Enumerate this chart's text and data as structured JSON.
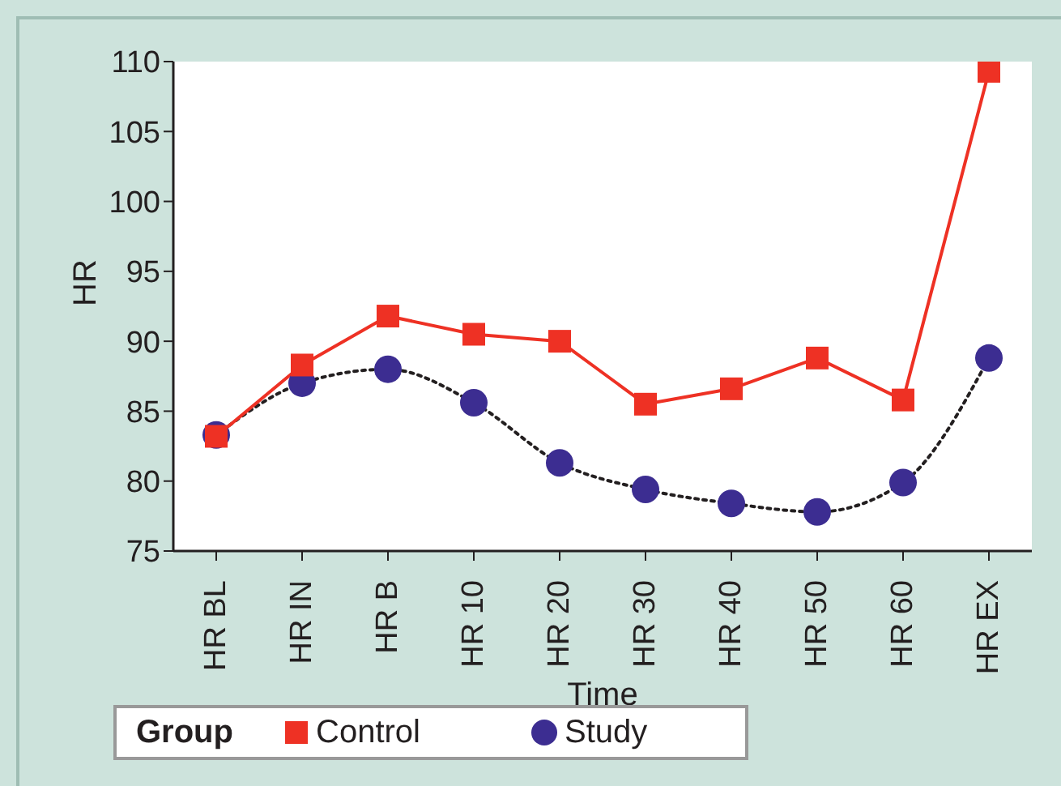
{
  "chart_data": {
    "type": "line",
    "xlabel": "Time",
    "ylabel": "HR",
    "legend_title": "Group",
    "categories": [
      "HR BL",
      "HR IN",
      "HR B",
      "HR 10",
      "HR 20",
      "HR 30",
      "HR 40",
      "HR 50",
      "HR 60",
      "HR EX"
    ],
    "series": [
      {
        "name": "Control",
        "color": "#ee3124",
        "marker": "square",
        "line_style": "solid",
        "values": [
          83.2,
          88.3,
          91.8,
          90.5,
          90.0,
          85.5,
          86.6,
          88.8,
          85.8,
          109.3
        ]
      },
      {
        "name": "Study",
        "color": "#3c2d91",
        "marker": "circle",
        "line_style": "dotted",
        "values": [
          83.3,
          87.0,
          88.0,
          85.6,
          81.3,
          79.4,
          78.4,
          77.8,
          79.9,
          88.8
        ]
      }
    ],
    "ylim": [
      75,
      110
    ],
    "yticks": [
      75,
      80,
      85,
      90,
      95,
      100,
      105,
      110
    ],
    "grid": false,
    "legend": "bottom"
  }
}
